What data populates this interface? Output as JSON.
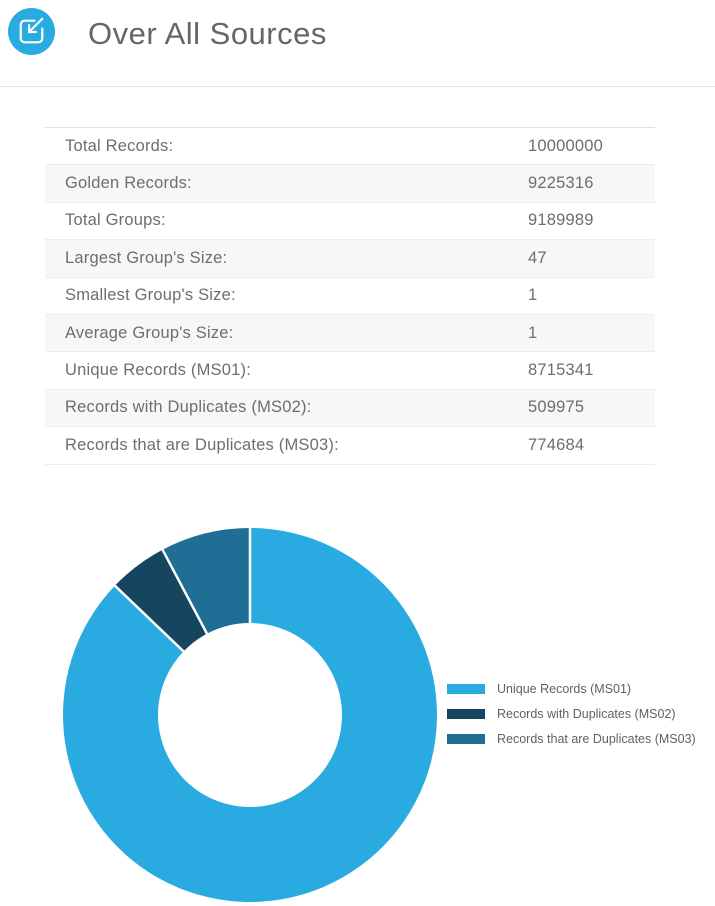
{
  "header": {
    "title": "Over All Sources",
    "icon": "import-arrow-square-icon",
    "accent_color": "#29abe2"
  },
  "stats": {
    "rows": [
      {
        "label": "Total Records:",
        "value": "10000000"
      },
      {
        "label": "Golden Records:",
        "value": "9225316"
      },
      {
        "label": "Total Groups:",
        "value": "9189989"
      },
      {
        "label": "Largest Group's Size:",
        "value": "47"
      },
      {
        "label": "Smallest Group's Size:",
        "value": "1"
      },
      {
        "label": "Average Group's Size:",
        "value": "1"
      },
      {
        "label": "Unique Records (MS01):",
        "value": "8715341"
      },
      {
        "label": "Records with Duplicates (MS02):",
        "value": "509975"
      },
      {
        "label": "Records that are Duplicates (MS03):",
        "value": "774684"
      }
    ]
  },
  "chart_data": {
    "type": "pie",
    "variant": "donut",
    "title": "",
    "labels": [
      "Unique Records (MS01)",
      "Records with Duplicates (MS02)",
      "Records that are Duplicates (MS03)"
    ],
    "values": [
      8715341,
      509975,
      774684
    ],
    "percentages": [
      87.15,
      5.1,
      7.75
    ],
    "total": 10000000,
    "colors": [
      "#29abe2",
      "#16465f",
      "#1e6e96"
    ],
    "separator_color": "#ffffff",
    "start_angle_deg": 0,
    "direction": "clockwise",
    "outer_radius_px": 187,
    "inner_radius_px": 92,
    "legend_position": "right"
  }
}
